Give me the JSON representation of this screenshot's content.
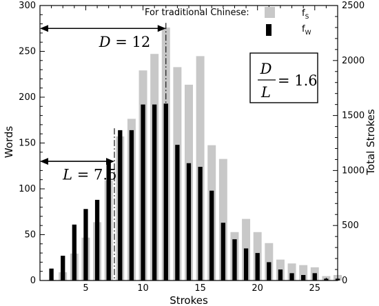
{
  "chart_data": {
    "type": "bar",
    "legend_title": "For traditional Chinese:",
    "legend_placement": "top-right",
    "xlabel": "Strokes",
    "ylabel_left": "Words",
    "ylabel_right": "Total Strokes",
    "xlim": [
      1,
      27
    ],
    "ylim_left": [
      0,
      300
    ],
    "ylim_right": [
      0,
      2500
    ],
    "xticks": [
      5,
      10,
      15,
      20,
      25
    ],
    "yticks_left": [
      0,
      50,
      100,
      150,
      200,
      250,
      300
    ],
    "yticks_right": [
      0,
      500,
      1000,
      1500,
      2000,
      2500
    ],
    "series": [
      {
        "name": "f",
        "name_sub": "S",
        "axis": "right",
        "color": "#c8c8c8",
        "x": [
          2,
          3,
          4,
          5,
          6,
          7,
          8,
          9,
          10,
          11,
          12,
          13,
          14,
          15,
          16,
          17,
          18,
          19,
          20,
          21,
          22,
          23,
          24,
          25,
          26,
          27
        ],
        "values": [
          5,
          75,
          245,
          390,
          530,
          910,
          1310,
          1470,
          1910,
          2060,
          2300,
          1940,
          1780,
          2040,
          1230,
          1105,
          440,
          560,
          440,
          340,
          190,
          155,
          140,
          120,
          40,
          50
        ]
      },
      {
        "name": "f",
        "name_sub": "W",
        "axis": "left",
        "color": "#000000",
        "x": [
          2,
          3,
          4,
          5,
          6,
          7,
          8,
          9,
          10,
          11,
          12,
          13,
          14,
          15,
          16,
          17,
          18,
          19,
          20,
          21,
          22,
          23,
          24,
          25,
          26,
          27
        ],
        "values": [
          13,
          27,
          61,
          78,
          88,
          131,
          164,
          164,
          192,
          192,
          193,
          148,
          128,
          124,
          98,
          63,
          45,
          35,
          30,
          20,
          12,
          8,
          6,
          8,
          2,
          2
        ]
      }
    ],
    "annotations": {
      "D": {
        "label": "D",
        "value_text": "12",
        "from": 1,
        "to": 12,
        "at_left_y": 275,
        "label_x": 7,
        "label_y": 255
      },
      "L": {
        "label": "L",
        "value_text": "7.5",
        "from": 1,
        "to": 7.5,
        "at_left_y": 130,
        "label_x": 4.2,
        "label_y": 110
      },
      "ratio": {
        "numerator": "D",
        "denominator": "L",
        "value_text": "1.6"
      }
    }
  }
}
